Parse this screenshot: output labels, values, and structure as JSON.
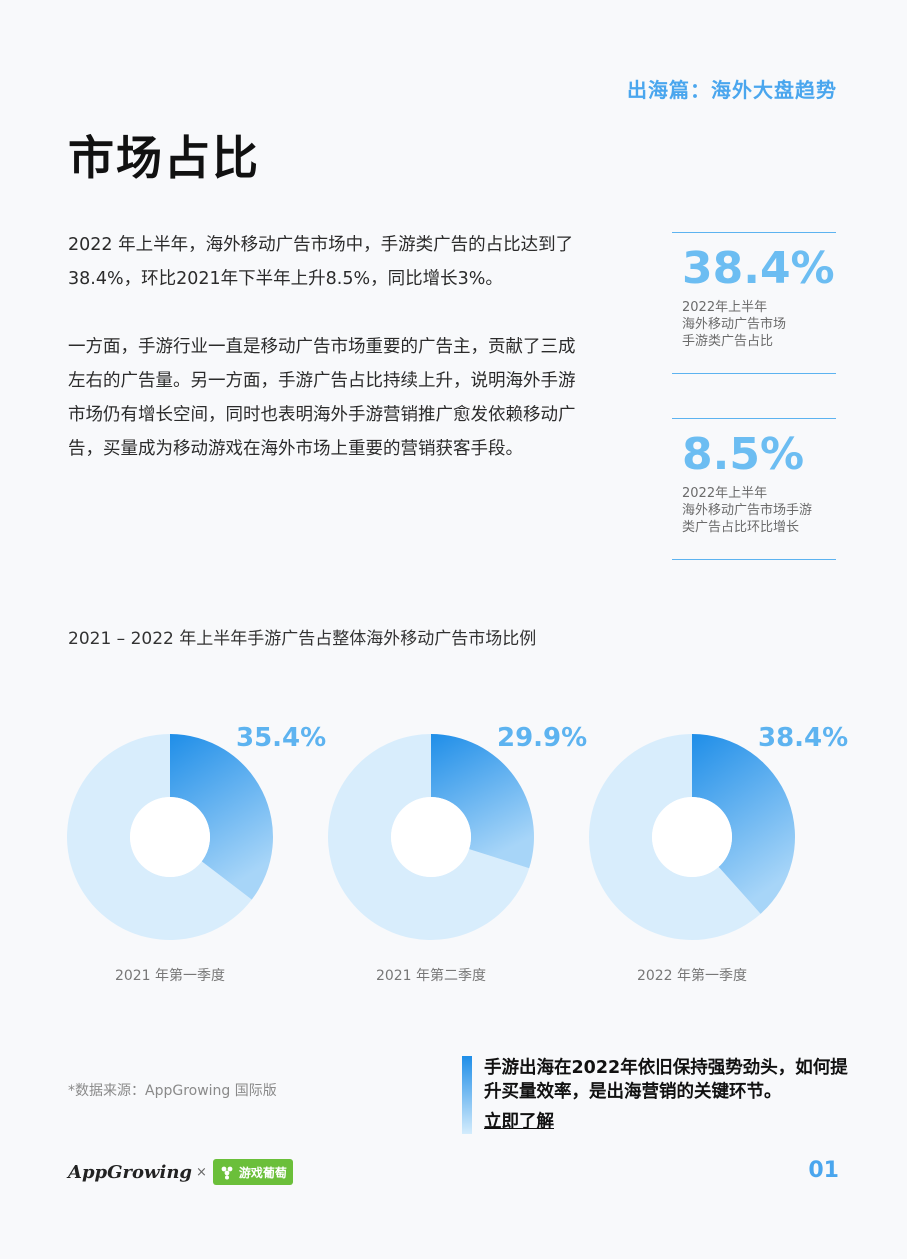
{
  "header": {
    "section_tag": "出海篇：海外大盘趋势",
    "title": "市场占比"
  },
  "body": {
    "paragraph1": "2022 年上半年，海外移动广告市场中，手游类广告的占比达到了38.4%，环比2021年下半年上升8.5%，同比增长3%。",
    "paragraph2": "一方面，手游行业一直是移动广告市场重要的广告主，贡献了三成左右的广告量。另一方面，手游广告占比持续上升，说明海外手游市场仍有增长空间，同时也表明海外手游营销推广愈发依赖移动广告，买量成为移动游戏在海外市场上重要的营销获客手段。"
  },
  "stats": [
    {
      "value": "38.4%",
      "desc": "2022年上半年\n海外移动广告市场\n手游类广告占比"
    },
    {
      "value": "8.5%",
      "desc": "2022年上半年\n海外移动广告市场手游\n类广告占比环比增长"
    }
  ],
  "chart_title": "2021 – 2022 年上半年手游广告占整体海外移动广告市场比例",
  "chart_data": [
    {
      "type": "pie",
      "variant": "donut",
      "label": "2021 年第一季度",
      "value": 35.4,
      "value_label": "35.4%"
    },
    {
      "type": "pie",
      "variant": "donut",
      "label": "2021 年第二季度",
      "value": 29.9,
      "value_label": "29.9%"
    },
    {
      "type": "pie",
      "variant": "donut",
      "label": "2022 年第一季度",
      "value": 38.4,
      "value_label": "38.4%"
    }
  ],
  "colors": {
    "accent": "#4aa6ee",
    "slice_dark": "#1f8ee8",
    "slice_light": "#a7d5f8",
    "ring_bg": "#d8edfc"
  },
  "source": "*数据来源：AppGrowing 国际版",
  "cta": {
    "text": "手游出海在2022年依旧保持强势劲头，如何提升买量效率，是出海营销的关键环节。",
    "link": "立即了解"
  },
  "footer": {
    "logo_app": "AppGrowing",
    "logo_times": "×",
    "logo_partner": "游戏葡萄",
    "page_number": "01"
  }
}
